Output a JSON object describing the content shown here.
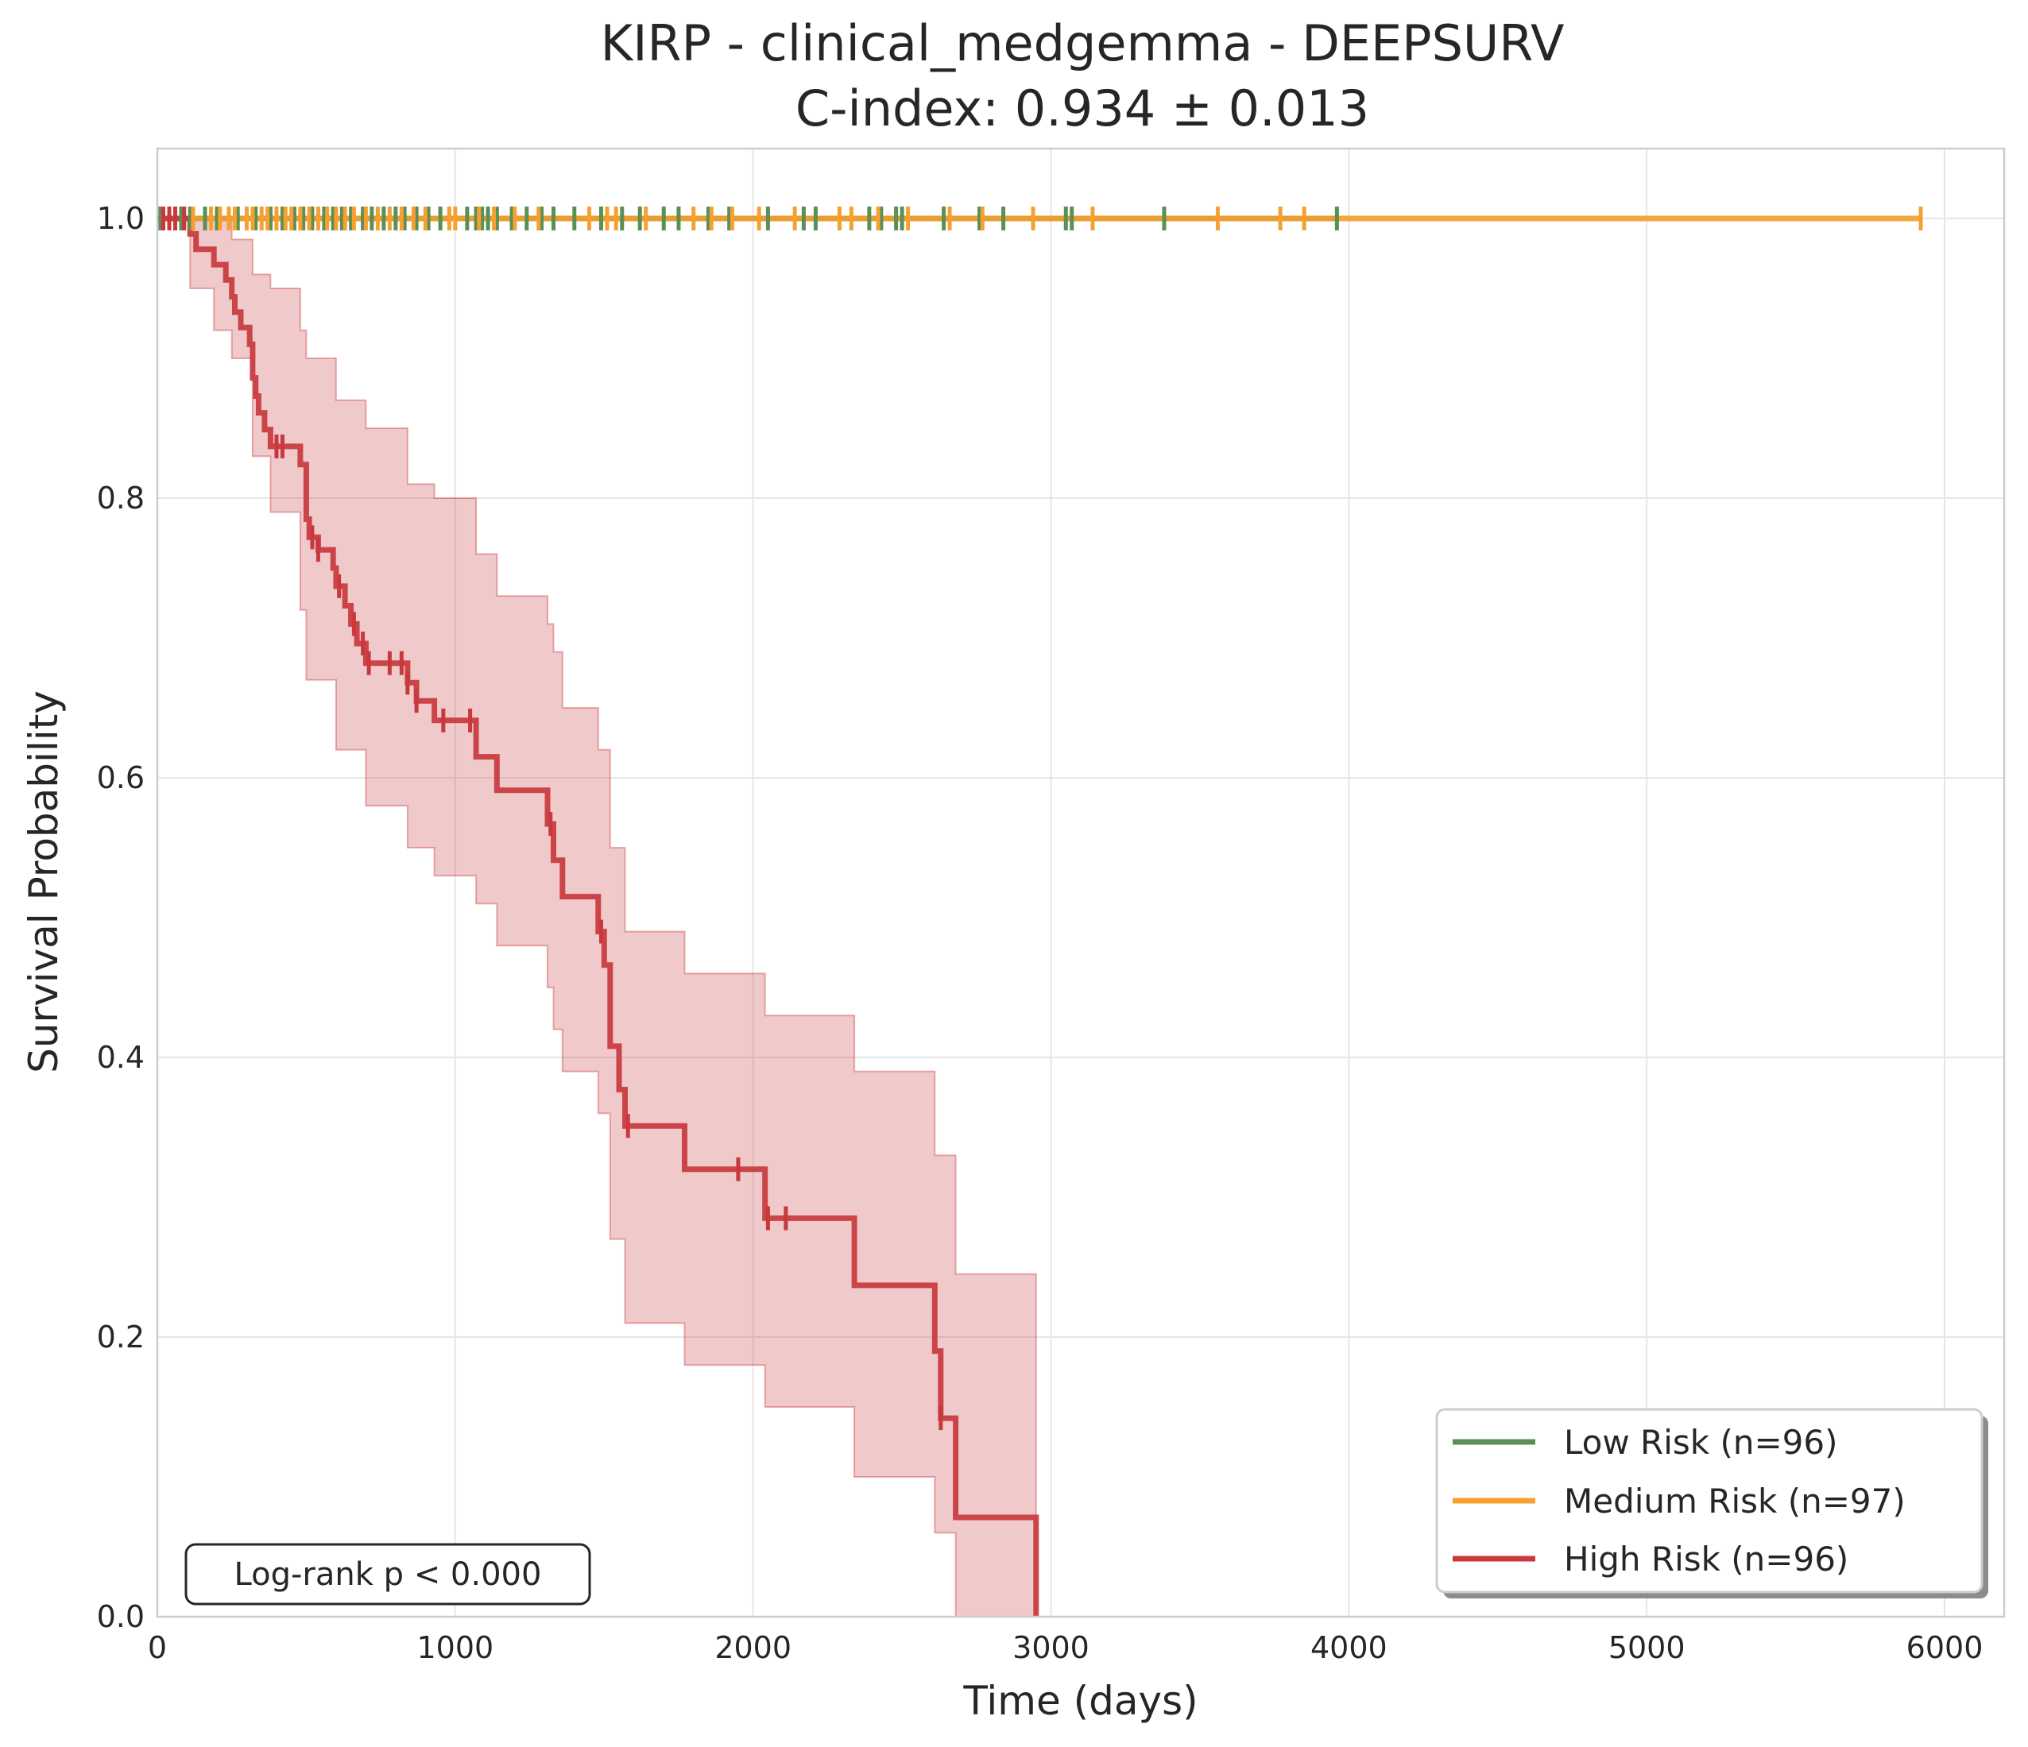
{
  "chart_data": {
    "type": "line",
    "subtype": "kaplan-meier",
    "title": "KIRP - clinical_medgemma - DEEPSURV",
    "subtitle": "C-index: 0.934 ± 0.013",
    "xlabel": "Time (days)",
    "ylabel": "Survival Probability",
    "xlim": [
      0,
      6200
    ],
    "ylim": [
      0,
      1.05
    ],
    "x_ticks": [
      0,
      1000,
      2000,
      3000,
      4000,
      5000,
      6000
    ],
    "y_ticks": [
      0.0,
      0.2,
      0.4,
      0.6,
      0.8,
      1.0
    ],
    "x_tick_labels": [
      "0",
      "1000",
      "2000",
      "3000",
      "4000",
      "5000",
      "6000"
    ],
    "y_tick_labels": [
      "0.0",
      "0.2",
      "0.4",
      "0.6",
      "0.8",
      "1.0"
    ],
    "grid": true,
    "legend_position": "bottom-right",
    "annotation": "Log-rank p < 0.000",
    "series": [
      {
        "name": "Low Risk (n=96)",
        "color": "#5a8f55",
        "steps": [
          [
            0,
            1.0
          ],
          [
            3960,
            1.0
          ]
        ],
        "censor_times": [
          10,
          40,
          80,
          110,
          160,
          200,
          270,
          330,
          380,
          420,
          460,
          490,
          520,
          560,
          590,
          620,
          650,
          690,
          720,
          760,
          800,
          830,
          870,
          910,
          950,
          1040,
          1070,
          1090,
          1110,
          1140,
          1190,
          1240,
          1290,
          1330,
          1400,
          1490,
          1560,
          1620,
          1700,
          1750,
          1850,
          1920,
          2050,
          2170,
          2210,
          2390,
          2430,
          2480,
          2500,
          2640,
          2760,
          2840,
          3050,
          3070,
          3380,
          3960
        ]
      },
      {
        "name": "Medium Risk (n=97)",
        "color": "#f5a030",
        "steps": [
          [
            0,
            1.0
          ],
          [
            5920,
            1.0
          ]
        ],
        "censor_times": [
          20,
          60,
          120,
          180,
          210,
          240,
          260,
          300,
          320,
          350,
          370,
          400,
          430,
          450,
          480,
          510,
          540,
          570,
          600,
          630,
          660,
          700,
          740,
          780,
          820,
          860,
          900,
          980,
          1000,
          1080,
          1130,
          1200,
          1280,
          1450,
          1510,
          1540,
          1640,
          1800,
          1860,
          1930,
          2020,
          2140,
          2290,
          2330,
          2420,
          2520,
          2660,
          2770,
          2940,
          3140,
          3560,
          3770,
          3850,
          5920
        ]
      },
      {
        "name": "High Risk (n=96)",
        "color": "#c8393d",
        "steps": [
          [
            0,
            1.0
          ],
          [
            110,
            1.0
          ],
          [
            110,
            0.989
          ],
          [
            130,
            0.989
          ],
          [
            130,
            0.978
          ],
          [
            190,
            0.978
          ],
          [
            190,
            0.967
          ],
          [
            230,
            0.967
          ],
          [
            230,
            0.956
          ],
          [
            250,
            0.956
          ],
          [
            250,
            0.944
          ],
          [
            260,
            0.944
          ],
          [
            260,
            0.933
          ],
          [
            280,
            0.933
          ],
          [
            280,
            0.922
          ],
          [
            310,
            0.922
          ],
          [
            310,
            0.91
          ],
          [
            320,
            0.91
          ],
          [
            320,
            0.886
          ],
          [
            330,
            0.886
          ],
          [
            330,
            0.873
          ],
          [
            340,
            0.873
          ],
          [
            340,
            0.861
          ],
          [
            360,
            0.861
          ],
          [
            360,
            0.849
          ],
          [
            380,
            0.849
          ],
          [
            380,
            0.837
          ],
          [
            480,
            0.837
          ],
          [
            480,
            0.824
          ],
          [
            500,
            0.824
          ],
          [
            500,
            0.785
          ],
          [
            510,
            0.785
          ],
          [
            510,
            0.772
          ],
          [
            540,
            0.772
          ],
          [
            540,
            0.763
          ],
          [
            590,
            0.763
          ],
          [
            590,
            0.75
          ],
          [
            600,
            0.75
          ],
          [
            600,
            0.737
          ],
          [
            630,
            0.737
          ],
          [
            630,
            0.723
          ],
          [
            650,
            0.723
          ],
          [
            650,
            0.71
          ],
          [
            670,
            0.71
          ],
          [
            670,
            0.696
          ],
          [
            700,
            0.696
          ],
          [
            700,
            0.682
          ],
          [
            840,
            0.682
          ],
          [
            840,
            0.668
          ],
          [
            870,
            0.668
          ],
          [
            870,
            0.655
          ],
          [
            930,
            0.655
          ],
          [
            930,
            0.641
          ],
          [
            1070,
            0.641
          ],
          [
            1070,
            0.615
          ],
          [
            1140,
            0.615
          ],
          [
            1140,
            0.591
          ],
          [
            1310,
            0.591
          ],
          [
            1310,
            0.567
          ],
          [
            1330,
            0.567
          ],
          [
            1330,
            0.541
          ],
          [
            1360,
            0.541
          ],
          [
            1360,
            0.515
          ],
          [
            1480,
            0.515
          ],
          [
            1480,
            0.49
          ],
          [
            1500,
            0.49
          ],
          [
            1500,
            0.466
          ],
          [
            1520,
            0.466
          ],
          [
            1520,
            0.408
          ],
          [
            1550,
            0.408
          ],
          [
            1550,
            0.377
          ],
          [
            1570,
            0.377
          ],
          [
            1570,
            0.351
          ],
          [
            1770,
            0.351
          ],
          [
            1770,
            0.32
          ],
          [
            2040,
            0.32
          ],
          [
            2040,
            0.285
          ],
          [
            2340,
            0.285
          ],
          [
            2340,
            0.237
          ],
          [
            2610,
            0.237
          ],
          [
            2610,
            0.19
          ],
          [
            2630,
            0.19
          ],
          [
            2630,
            0.142
          ],
          [
            2680,
            0.142
          ],
          [
            2680,
            0.071
          ],
          [
            2950,
            0.071
          ],
          [
            2950,
            0.0
          ]
        ],
        "ci_upper": [
          [
            0,
            1.0
          ],
          [
            110,
            1.0
          ],
          [
            190,
            1.0
          ],
          [
            250,
            0.985
          ],
          [
            320,
            0.96
          ],
          [
            380,
            0.95
          ],
          [
            480,
            0.92
          ],
          [
            500,
            0.9
          ],
          [
            600,
            0.87
          ],
          [
            700,
            0.85
          ],
          [
            840,
            0.81
          ],
          [
            930,
            0.8
          ],
          [
            1070,
            0.76
          ],
          [
            1140,
            0.73
          ],
          [
            1310,
            0.71
          ],
          [
            1330,
            0.69
          ],
          [
            1360,
            0.65
          ],
          [
            1480,
            0.62
          ],
          [
            1520,
            0.55
          ],
          [
            1570,
            0.49
          ],
          [
            1770,
            0.46
          ],
          [
            2040,
            0.43
          ],
          [
            2340,
            0.39
          ],
          [
            2610,
            0.33
          ],
          [
            2680,
            0.245
          ],
          [
            2950,
            0.245
          ]
        ],
        "ci_lower": [
          [
            0,
            1.0
          ],
          [
            110,
            0.95
          ],
          [
            190,
            0.92
          ],
          [
            250,
            0.9
          ],
          [
            320,
            0.83
          ],
          [
            380,
            0.79
          ],
          [
            480,
            0.72
          ],
          [
            500,
            0.67
          ],
          [
            600,
            0.62
          ],
          [
            700,
            0.58
          ],
          [
            840,
            0.55
          ],
          [
            930,
            0.53
          ],
          [
            1070,
            0.51
          ],
          [
            1140,
            0.48
          ],
          [
            1310,
            0.45
          ],
          [
            1330,
            0.42
          ],
          [
            1360,
            0.39
          ],
          [
            1480,
            0.36
          ],
          [
            1520,
            0.27
          ],
          [
            1570,
            0.21
          ],
          [
            1770,
            0.18
          ],
          [
            2040,
            0.15
          ],
          [
            2340,
            0.1
          ],
          [
            2610,
            0.06
          ],
          [
            2680,
            0.0
          ],
          [
            2950,
            0.0
          ]
        ],
        "censor_times": [
          20,
          40,
          60,
          90,
          400,
          420,
          520,
          540,
          610,
          660,
          690,
          710,
          780,
          820,
          840,
          870,
          960,
          1050,
          1320,
          1490,
          1580,
          1950,
          2050,
          2110,
          2630
        ]
      }
    ]
  }
}
